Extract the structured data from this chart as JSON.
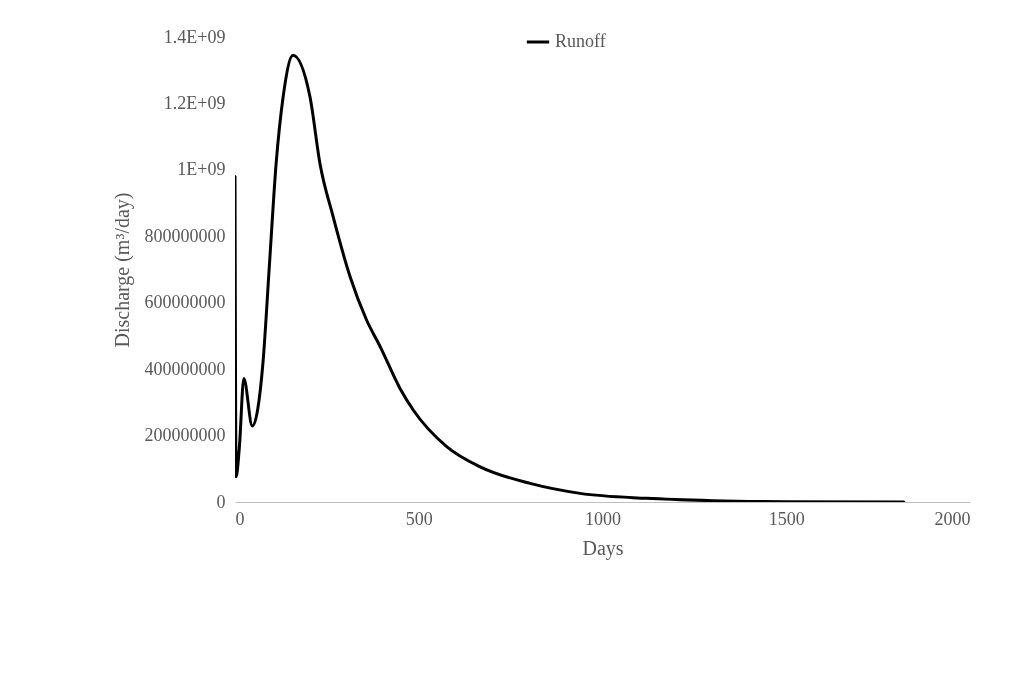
{
  "chart_data": {
    "type": "line",
    "xlabel": "Days",
    "ylabel": "Discharge (m³/day)",
    "x": [
      0,
      3,
      12,
      24,
      47,
      76,
      94,
      112,
      131,
      158,
      204,
      231,
      267,
      313,
      358,
      395,
      449,
      485,
      576,
      667,
      803,
      939,
      1120,
      1300,
      1500,
      1820
    ],
    "series": [
      {
        "name": "Runoff",
        "color": "#000000",
        "values": [
          980000000,
          76000000,
          167000000,
          372000000,
          229000000,
          418000000,
          720000000,
          1020000000,
          1220000000,
          1345000000,
          1220000000,
          1020000000,
          859000000,
          679000000,
          548000000,
          468000000,
          342000000,
          277000000,
          167000000,
          106000000,
          56000000,
          26000000,
          11000000,
          4000000,
          1000000,
          0
        ]
      }
    ],
    "xlim": [
      0,
      2000
    ],
    "xticks": [
      0,
      500,
      1000,
      1500,
      2000
    ],
    "ylim": [
      0,
      1400000000
    ],
    "yticks": [
      0,
      200000000,
      400000000,
      600000000,
      800000000,
      {
        "value": 1000000000,
        "label": "1E+09"
      },
      {
        "value": 1200000000,
        "label": "1.2E+09"
      },
      {
        "value": 1400000000,
        "label": "1.4E+09"
      }
    ],
    "grid": false,
    "legend": "top",
    "marker": "none",
    "line_style": "solid"
  }
}
